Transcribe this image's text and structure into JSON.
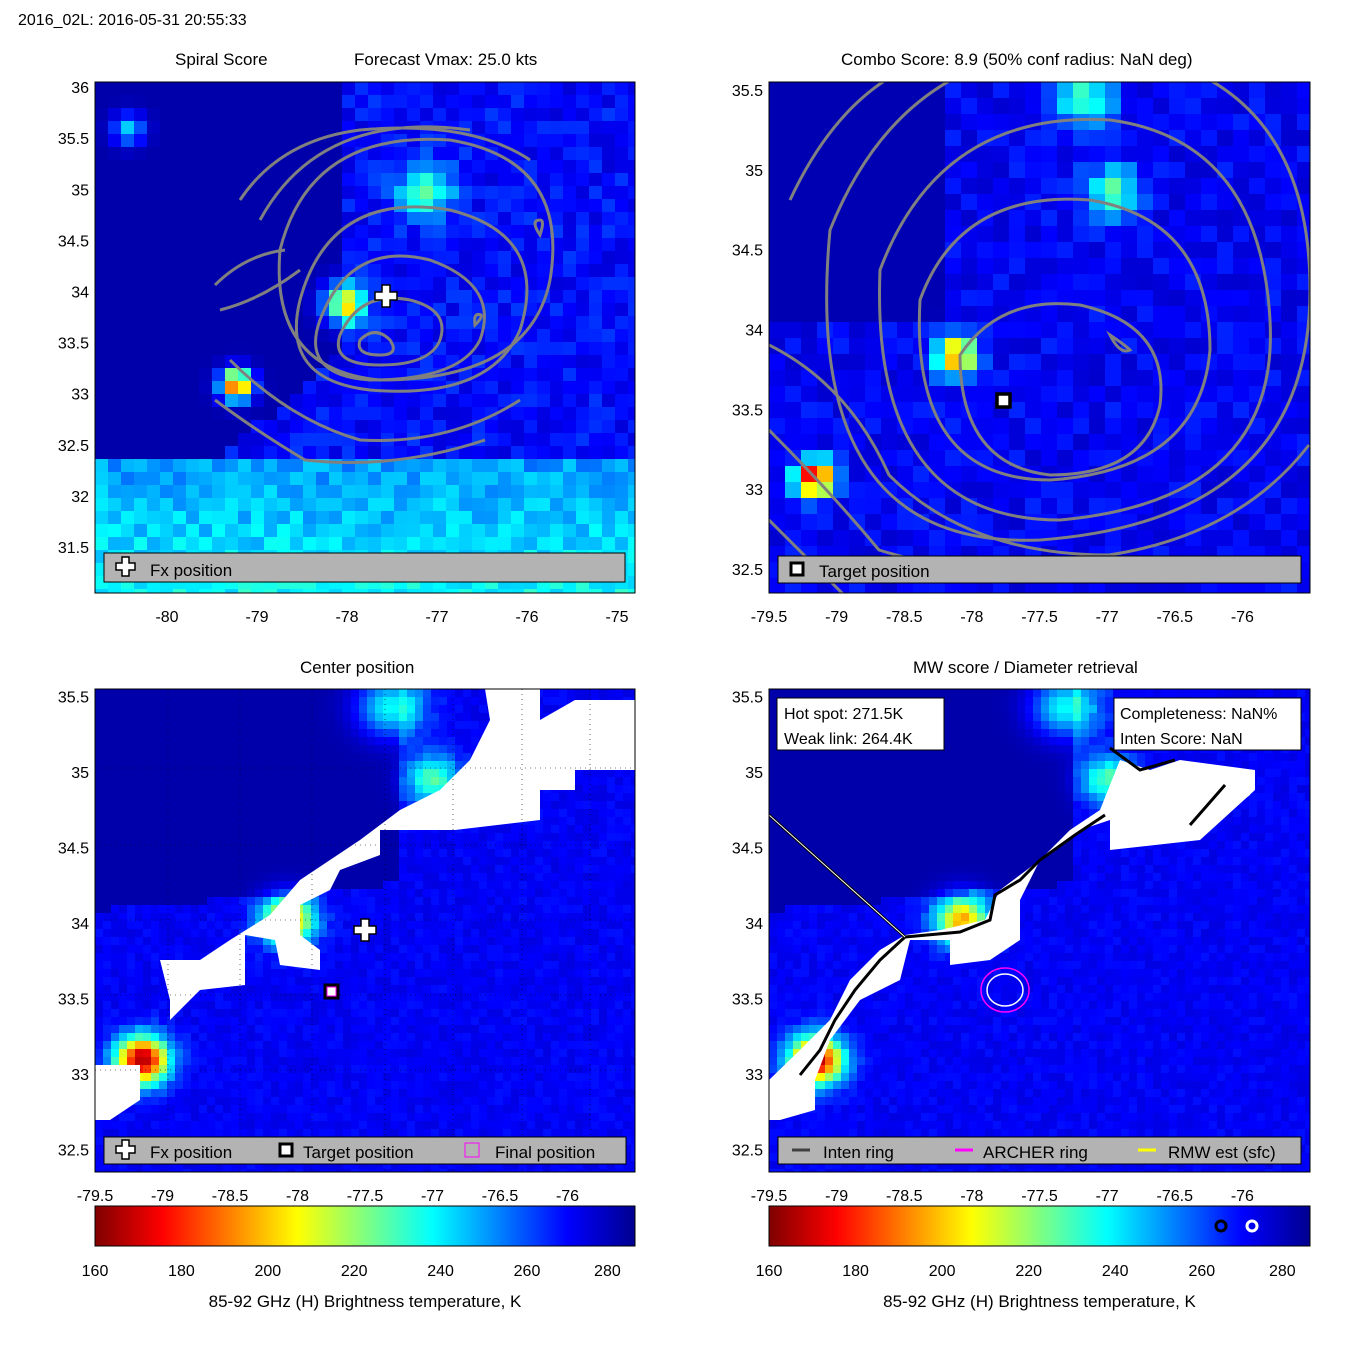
{
  "figure": {
    "suptitle": "2016_02L: 2016-05-31 20:55:33",
    "colormap_stops": [
      "#7f0000",
      "#ff0000",
      "#ff8000",
      "#ffff00",
      "#80ff80",
      "#00ffff",
      "#0080ff",
      "#0000ff",
      "#00008f"
    ],
    "masked_color": "#ffffff",
    "contour_color": "#808080",
    "panel_background": "#0a2db8"
  },
  "panels": {
    "spiral": {
      "title_left": "Spiral Score",
      "title_right": "Forecast Vmax: 25.0 kts",
      "legend": [
        "Fx position"
      ]
    },
    "combo": {
      "title": "Combo Score: 8.9  (50% conf radius: NaN deg)",
      "legend": [
        "Target position"
      ]
    },
    "center": {
      "title": "Center position",
      "legend": [
        "Fx position",
        "Target position",
        "Final position"
      ]
    },
    "mw": {
      "title": "MW score / Diameter retrieval",
      "hot_spot": "Hot spot: 271.5K",
      "weak_link": "Weak link: 264.4K",
      "completeness": "Completeness: NaN%",
      "inten_score": "Inten Score: NaN",
      "legend": [
        "Inten ring",
        "ARCHER ring",
        "RMW est (sfc)"
      ]
    }
  },
  "colorbars": [
    {
      "label": "85-92 GHz (H) Brightness temperature, K",
      "ticks": [
        "160",
        "180",
        "200",
        "220",
        "240",
        "260",
        "280"
      ]
    },
    {
      "label": "85-92 GHz (H) Brightness temperature, K",
      "ticks": [
        "160",
        "180",
        "200",
        "220",
        "240",
        "260",
        "280"
      ]
    }
  ],
  "chart_data": [
    {
      "type": "heatmap",
      "name": "spiral_score",
      "title": "Spiral Score   Forecast Vmax: 25.0 kts",
      "x_ticks": [
        "-80",
        "-79",
        "-78",
        "-77",
        "-76",
        "-75"
      ],
      "y_ticks": [
        "31.5",
        "32",
        "32.5",
        "33",
        "33.5",
        "34",
        "34.5",
        "35",
        "35.5",
        "36"
      ],
      "xlim": [
        -80.8,
        -74.8
      ],
      "ylim": [
        31.05,
        36.05
      ],
      "fx_position": {
        "lon": -77.55,
        "lat": 33.93
      },
      "hot_pixels": [
        {
          "lon": -79.28,
          "lat": 33.13,
          "tb": 165
        },
        {
          "lon": -78.1,
          "lat": 34.0,
          "tb": 190
        }
      ],
      "value_range_K": [
        160,
        285
      ]
    },
    {
      "type": "heatmap",
      "name": "combo_score",
      "title": "Combo Score: 8.9  (50% conf radius: NaN deg)",
      "combo_score": 8.9,
      "x_ticks": [
        "-79.5",
        "-79",
        "-78.5",
        "-78",
        "-77.5",
        "-77",
        "-76.5",
        "-76"
      ],
      "y_ticks": [
        "32.5",
        "33",
        "33.5",
        "34",
        "34.5",
        "35",
        "35.5"
      ],
      "xlim": [
        -79.5,
        -75.5
      ],
      "ylim": [
        32.35,
        35.55
      ],
      "target_position": {
        "lon": -77.83,
        "lat": 33.53
      },
      "value_range_K": [
        160,
        285
      ]
    },
    {
      "type": "heatmap",
      "name": "center_position",
      "title": "Center position",
      "x_ticks": [
        "-79.5",
        "-79",
        "-78.5",
        "-78",
        "-77.5",
        "-77",
        "-76.5",
        "-76"
      ],
      "y_ticks": [
        "32.5",
        "33",
        "33.5",
        "34",
        "34.5",
        "35",
        "35.5"
      ],
      "xlim": [
        -79.5,
        -75.5
      ],
      "ylim": [
        32.35,
        35.55
      ],
      "fx_position": {
        "lon": -77.55,
        "lat": 33.93
      },
      "target_position": {
        "lon": -77.83,
        "lat": 33.53
      },
      "value_range_K": [
        160,
        285
      ]
    },
    {
      "type": "heatmap",
      "name": "mw_score",
      "title": "MW score / Diameter retrieval",
      "hot_spot_K": 271.5,
      "weak_link_K": 264.4,
      "x_ticks": [
        "-79.5",
        "-79",
        "-78.5",
        "-78",
        "-77.5",
        "-77",
        "-76.5",
        "-76"
      ],
      "y_ticks": [
        "32.5",
        "33",
        "33.5",
        "34",
        "34.5",
        "35",
        "35.5"
      ],
      "xlim": [
        -79.5,
        -75.5
      ],
      "ylim": [
        32.35,
        35.55
      ],
      "archer_ring": {
        "lon": -77.83,
        "lat": 33.53
      },
      "colorbar_markers_K": [
        264.4,
        271.5
      ],
      "value_range_K": [
        160,
        285
      ]
    }
  ]
}
